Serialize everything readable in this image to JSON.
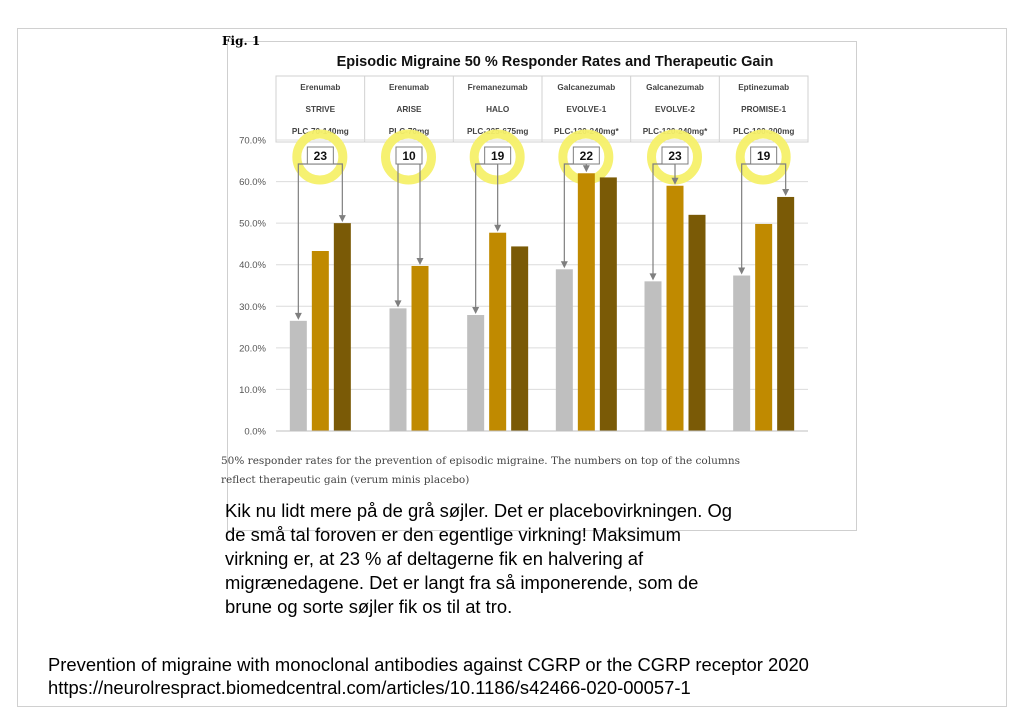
{
  "figure": {
    "label": "Fig. 1",
    "caption": [
      "50% responder rates for the prevention of episodic migraine. The numbers on top of the columns",
      "reflect therapeutic gain (verum minis placebo)"
    ]
  },
  "chart_data": {
    "type": "bar",
    "title": "Episodic Migraine 50 % Responder Rates and Therapeutic Gain",
    "ylim": [
      0,
      70
    ],
    "yticks": [
      "0.0%",
      "10.0%",
      "20.0%",
      "30.0%",
      "40.0%",
      "50.0%",
      "60.0%",
      "70.0%"
    ],
    "grid": true,
    "groups": [
      {
        "drug": "Erenumab",
        "trial": "STRIVE",
        "dose": "PLC-70-140mg",
        "gain": "23",
        "values": [
          26.5,
          43.3,
          50.0
        ]
      },
      {
        "drug": "Erenumab",
        "trial": "ARISE",
        "dose": "PLC-70mg",
        "gain": "10",
        "values": [
          29.5,
          39.7
        ]
      },
      {
        "drug": "Fremanezumab",
        "trial": "HALO",
        "dose": "PLC-225-675mg",
        "gain": "19",
        "values": [
          27.9,
          47.7,
          44.4
        ]
      },
      {
        "drug": "Galcanezumab",
        "trial": "EVOLVE-1",
        "dose": "PLC-120-240mg*",
        "gain": "22",
        "values": [
          38.9,
          62.0,
          61.0
        ]
      },
      {
        "drug": "Galcanezumab",
        "trial": "EVOLVE-2",
        "dose": "PLC-120-240mg*",
        "gain": "23",
        "values": [
          36.0,
          59.0,
          52.0
        ]
      },
      {
        "drug": "Eptinezumab",
        "trial": "PROMISE-1",
        "dose": "PLC-100-300mg",
        "gain": "19",
        "values": [
          37.4,
          49.8,
          56.3
        ]
      }
    ],
    "bar_colors": [
      "#bfbfbf",
      "#c08a00",
      "#7a5a06"
    ],
    "highlight_color": "#f5f069"
  },
  "note": [
    "Kik nu lidt mere på de grå søjler. Det er placebovirkningen. Og",
    "de små tal foroven er den egentlige virkning! Maksimum",
    "virkning er, at 23 % af deltagerne fik en halvering af",
    "migrænedagene. Det er langt fra så imponerende, som de",
    "brune og sorte søjler fik os til at tro."
  ],
  "reference": [
    "Prevention of migraine with monoclonal antibodies against CGRP or the CGRP receptor 2020",
    "https://neurolrespract.biomedcentral.com/articles/10.1186/s42466-020-00057-1"
  ]
}
